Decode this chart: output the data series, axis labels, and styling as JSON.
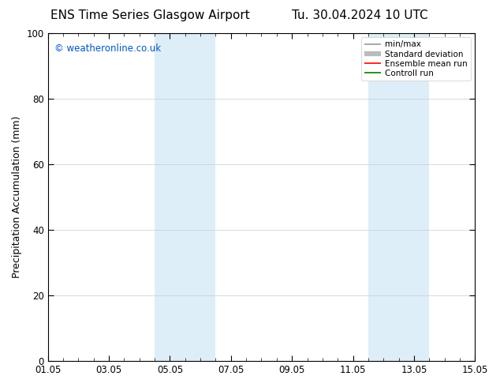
{
  "title_left": "ENS Time Series Glasgow Airport",
  "title_right": "Tu. 30.04.2024 10 UTC",
  "ylabel": "Precipitation Accumulation (mm)",
  "ylim": [
    0,
    100
  ],
  "yticks": [
    0,
    20,
    40,
    60,
    80,
    100
  ],
  "xtick_labels": [
    "01.05",
    "03.05",
    "05.05",
    "07.05",
    "09.05",
    "11.05",
    "13.05",
    "15.05"
  ],
  "xtick_positions": [
    0,
    2,
    4,
    6,
    8,
    10,
    12,
    14
  ],
  "x_total_days": 14,
  "shaded_regions": [
    {
      "x_start": 3.5,
      "x_end": 5.5,
      "color": "#ddeef8"
    },
    {
      "x_start": 10.5,
      "x_end": 12.5,
      "color": "#ddeef8"
    }
  ],
  "bg_color": "#ffffff",
  "plot_bg_color": "#ffffff",
  "watermark_text": "© weatheronline.co.uk",
  "watermark_color": "#0055cc",
  "legend_entries": [
    {
      "label": "min/max",
      "color": "#999999",
      "lw": 1.2
    },
    {
      "label": "Standard deviation",
      "color": "#bbbbbb",
      "lw": 4.5
    },
    {
      "label": "Ensemble mean run",
      "color": "#ff0000",
      "lw": 1.2
    },
    {
      "label": "Controll run",
      "color": "#008000",
      "lw": 1.2
    }
  ],
  "title_fontsize": 11,
  "axis_label_fontsize": 9,
  "tick_fontsize": 8.5,
  "watermark_fontsize": 8.5,
  "legend_fontsize": 7.5,
  "grid_color": "#cccccc",
  "spine_color": "#000000"
}
